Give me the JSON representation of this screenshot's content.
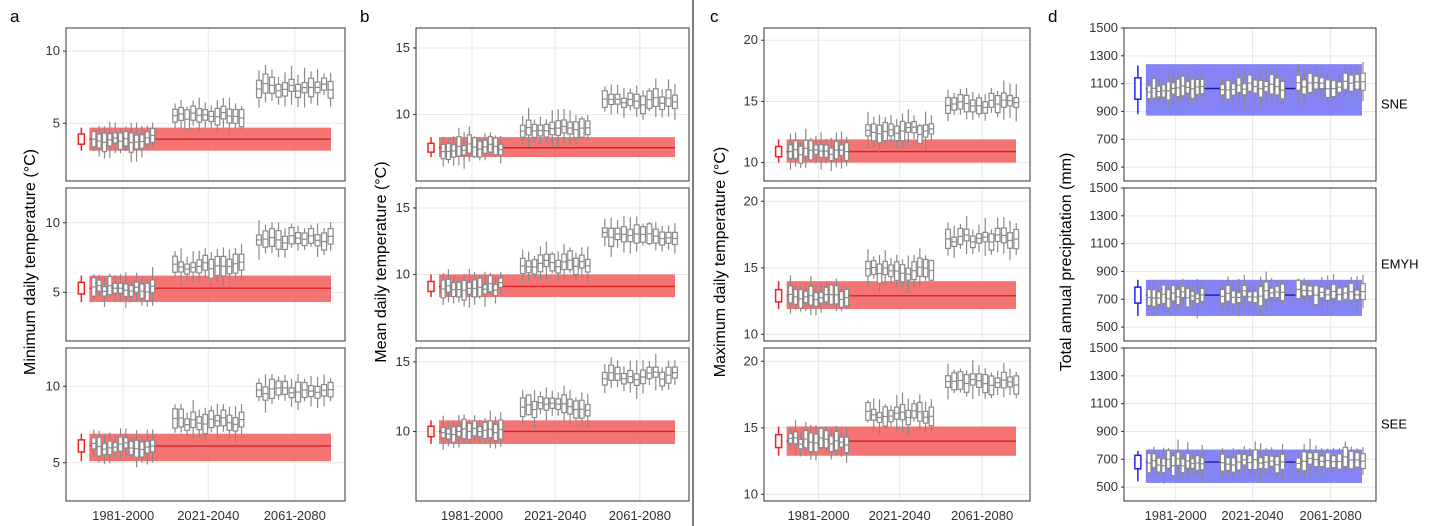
{
  "colors": {
    "baseline_band": "#f25c5c",
    "baseline_line": "#e02020",
    "baseline_box": "#ee2222",
    "precip_band": "#6f6ff5",
    "precip_line": "#1a1aa0",
    "precip_box": "#2222ee",
    "box_stroke": "#8a8a8a",
    "grid": "#e8e8e8",
    "panel_border": "#333333"
  },
  "chart_data": [
    {
      "type": "boxplot",
      "panel_label": "a",
      "ylabel": "Minimum daily temperature (°C)",
      "x_periods": [
        "1981-2000",
        "2021-2040",
        "2061-2080"
      ],
      "grid": true,
      "facets": [
        {
          "strip": "",
          "ylim": [
            1,
            11.6
          ],
          "yticks": [
            "5",
            "10"
          ],
          "obs_median": 3.9,
          "band": [
            3.1,
            4.7
          ],
          "obs_range": [
            3.1,
            4.7
          ],
          "period_medians": [
            3.9,
            5.5,
            7.5
          ]
        },
        {
          "strip": "",
          "ylim": [
            1.5,
            12.5
          ],
          "yticks": [
            "5",
            "10"
          ],
          "obs_median": 5.3,
          "band": [
            4.3,
            6.2
          ],
          "obs_range": [
            4.3,
            6.2
          ],
          "period_medians": [
            5.3,
            6.9,
            8.8
          ]
        },
        {
          "strip": "",
          "ylim": [
            2.5,
            12.5
          ],
          "yticks": [
            "5",
            "10"
          ],
          "obs_median": 6.1,
          "band": [
            5.1,
            6.9
          ],
          "obs_range": [
            5.1,
            6.9
          ],
          "period_medians": [
            6.1,
            7.7,
            9.7
          ]
        }
      ]
    },
    {
      "type": "boxplot",
      "panel_label": "b",
      "ylabel": "Mean daily temperature (°C)",
      "x_periods": [
        "1981-2000",
        "2021-2040",
        "2061-2080"
      ],
      "grid": true,
      "facets": [
        {
          "strip": "",
          "ylim": [
            5,
            16.5
          ],
          "yticks": [
            "10",
            "15"
          ],
          "obs_median": 7.5,
          "band": [
            6.8,
            8.3
          ],
          "obs_range": [
            6.8,
            8.3
          ],
          "period_medians": [
            7.5,
            9.0,
            11.0
          ]
        },
        {
          "strip": "",
          "ylim": [
            5,
            16.5
          ],
          "yticks": [
            "10",
            "15"
          ],
          "obs_median": 9.1,
          "band": [
            8.3,
            10.0
          ],
          "obs_range": [
            8.3,
            10.0
          ],
          "period_medians": [
            9.1,
            10.8,
            12.9
          ]
        },
        {
          "strip": "",
          "ylim": [
            5,
            16
          ],
          "yticks": [
            "10",
            "15"
          ],
          "obs_median": 10.0,
          "band": [
            9.1,
            10.8
          ],
          "obs_range": [
            9.1,
            10.8
          ],
          "period_medians": [
            10.0,
            11.8,
            14.0
          ]
        }
      ]
    },
    {
      "type": "boxplot",
      "panel_label": "c",
      "ylabel": "Maximum daily temperature (°C)",
      "x_periods": [
        "1981-2000",
        "2021-2040",
        "2061-2080"
      ],
      "grid": true,
      "facets": [
        {
          "strip": "",
          "ylim": [
            8.5,
            21
          ],
          "yticks": [
            "10",
            "15",
            "20"
          ],
          "obs_median": 10.9,
          "band": [
            10.0,
            11.9
          ],
          "obs_range": [
            10.0,
            11.9
          ],
          "period_medians": [
            10.9,
            12.6,
            14.8
          ]
        },
        {
          "strip": "",
          "ylim": [
            9.5,
            21
          ],
          "yticks": [
            "10",
            "15",
            "20"
          ],
          "obs_median": 12.9,
          "band": [
            11.9,
            14.0
          ],
          "obs_range": [
            11.9,
            14.0
          ],
          "period_medians": [
            12.9,
            14.8,
            17.2
          ]
        },
        {
          "strip": "",
          "ylim": [
            9.5,
            21
          ],
          "yticks": [
            "10",
            "15",
            "20"
          ],
          "obs_median": 14.0,
          "band": [
            12.9,
            15.1
          ],
          "obs_range": [
            12.9,
            15.1
          ],
          "period_medians": [
            14.0,
            16.0,
            18.4
          ]
        }
      ]
    },
    {
      "type": "boxplot",
      "panel_label": "d",
      "ylabel": "Total annual precipitation (mm)",
      "x_periods": [
        "1981-2000",
        "2021-2040",
        "2061-2080"
      ],
      "grid": true,
      "facets": [
        {
          "strip": "SNE",
          "ylim": [
            400,
            1500
          ],
          "yticks": [
            "500",
            "700",
            "900",
            "1100",
            "1300",
            "1500"
          ],
          "obs_median": 1065,
          "band": [
            870,
            1240
          ],
          "obs_range": [
            880,
            1230
          ],
          "period_medians": [
            1065,
            1080,
            1090
          ]
        },
        {
          "strip": "EMYH",
          "ylim": [
            400,
            1500
          ],
          "yticks": [
            "500",
            "700",
            "900",
            "1100",
            "1300",
            "1500"
          ],
          "obs_median": 730,
          "band": [
            580,
            840
          ],
          "obs_range": [
            580,
            840
          ],
          "period_medians": [
            730,
            735,
            745
          ]
        },
        {
          "strip": "SEE",
          "ylim": [
            400,
            1500
          ],
          "yticks": [
            "500",
            "700",
            "900",
            "1100",
            "1300",
            "1500"
          ],
          "obs_median": 680,
          "band": [
            530,
            770
          ],
          "obs_range": [
            540,
            760
          ],
          "period_medians": [
            680,
            680,
            690
          ]
        }
      ]
    }
  ]
}
